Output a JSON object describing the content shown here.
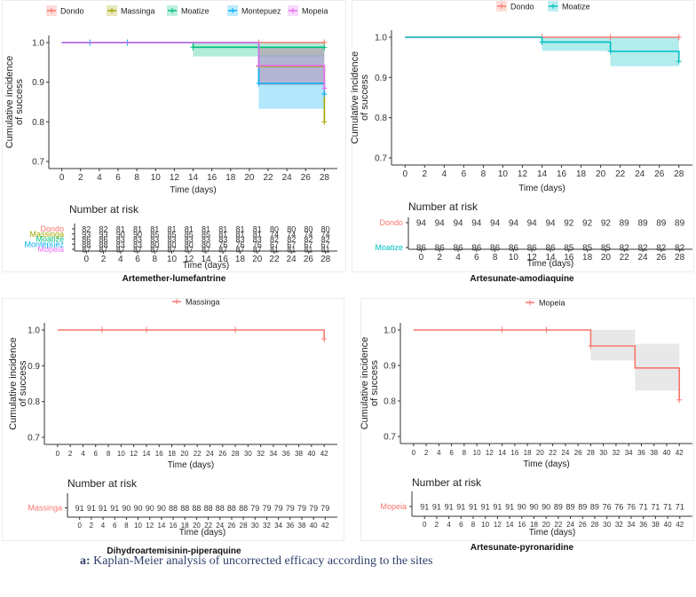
{
  "figure_caption": {
    "label": "a:",
    "text": "Kaplan-Meier analysis of uncorrected efficacy according to the sites"
  },
  "chart_data": [
    {
      "type": "line",
      "subtype": "kaplan-meier step",
      "title": "Artemether-lumefantrine",
      "xlabel": "Time (days)",
      "ylabel": "Cumulative incidence of success",
      "xlim": [
        0,
        28
      ],
      "ylim": [
        0.7,
        1.0
      ],
      "x_ticks": [
        0,
        2,
        4,
        6,
        8,
        10,
        12,
        14,
        16,
        18,
        20,
        22,
        24,
        26,
        28
      ],
      "y_ticks": [
        0.7,
        0.8,
        0.9,
        1.0
      ],
      "y_tick_labels": [
        "0.7",
        "0.8",
        "0.9",
        "1.0"
      ],
      "grid": false,
      "legend_position": "top",
      "series": [
        {
          "name": "Dondo",
          "color": "#f8766d",
          "steps": [
            [
              0,
              1.0
            ],
            [
              28,
              1.0
            ]
          ],
          "ci": [],
          "censor_x": [
            21,
            28
          ]
        },
        {
          "name": "Massinga",
          "color": "#a3a500",
          "steps": [
            [
              0,
              1.0
            ],
            [
              21,
              0.94
            ],
            [
              28,
              0.8
            ]
          ],
          "ci": [
            [
              21,
              28,
              0.893,
              0.99
            ]
          ],
          "censor_x": [
            21,
            28
          ]
        },
        {
          "name": "Moatize",
          "color": "#00bf7d",
          "steps": [
            [
              0,
              1.0
            ],
            [
              14,
              0.988
            ],
            [
              28,
              0.988
            ]
          ],
          "ci": [
            [
              14,
              28,
              0.965,
              1.0
            ]
          ],
          "censor_x": [
            14,
            28
          ]
        },
        {
          "name": "Montepuez",
          "color": "#00b0f6",
          "steps": [
            [
              0,
              1.0
            ],
            [
              21,
              0.897
            ],
            [
              28,
              0.87
            ]
          ],
          "ci": [
            [
              21,
              28,
              0.833,
              0.968
            ]
          ],
          "censor_x": [
            3,
            7,
            21,
            28
          ]
        },
        {
          "name": "Mopeia",
          "color": "#e76bf3",
          "steps": [
            [
              0,
              1.0
            ],
            [
              21,
              0.942
            ],
            [
              28,
              0.885
            ]
          ],
          "ci": [
            [
              21,
              28,
              0.893,
              0.99
            ]
          ],
          "censor_x": [
            21,
            28
          ]
        }
      ],
      "risk_table": {
        "title": "Number at risk",
        "times": [
          0,
          2,
          4,
          6,
          8,
          10,
          12,
          14,
          16,
          18,
          20,
          22,
          24,
          26,
          28
        ],
        "rows": [
          {
            "name": "Dondo",
            "color": "#f8766d",
            "values": [
              82,
              82,
              81,
              81,
              81,
              81,
              81,
              81,
              81,
              81,
              81,
              80,
              80,
              80,
              80
            ]
          },
          {
            "name": "Massinga",
            "color": "#a3a500",
            "values": [
              93,
              93,
              90,
              90,
              85,
              85,
              85,
              85,
              81,
              81,
              81,
              74,
              74,
              74,
              74
            ]
          },
          {
            "name": "Moatize",
            "color": "#00bf7d",
            "values": [
              86,
              86,
              83,
              83,
              83,
              83,
              83,
              83,
              83,
              83,
              83,
              82,
              82,
              82,
              82
            ]
          },
          {
            "name": "Montepuez",
            "color": "#00b0f6",
            "values": [
              88,
              88,
              83,
              83,
              80,
              80,
              80,
              80,
              76,
              76,
              76,
              67,
              67,
              67,
              67
            ]
          },
          {
            "name": "Mopeia",
            "color": "#e76bf3",
            "values": [
              87,
              87,
              87,
              87,
              87,
              87,
              87,
              87,
              87,
              87,
              87,
              81,
              81,
              81,
              81
            ]
          }
        ],
        "xlabel": "Time (days)"
      }
    },
    {
      "type": "line",
      "subtype": "kaplan-meier step",
      "title": "Artesunate-amodiaquine",
      "xlabel": "Time (days)",
      "ylabel": "Cumulative incidence of success",
      "xlim": [
        0,
        28
      ],
      "ylim": [
        0.7,
        1.0
      ],
      "x_ticks": [
        0,
        2,
        4,
        6,
        8,
        10,
        12,
        14,
        16,
        18,
        20,
        22,
        24,
        26,
        28
      ],
      "y_ticks": [
        0.7,
        0.8,
        0.9,
        1.0
      ],
      "y_tick_labels": [
        "0.7",
        "0.8",
        "0.9",
        "1.0"
      ],
      "grid": false,
      "legend_position": "top",
      "series": [
        {
          "name": "Dondo",
          "color": "#f8766d",
          "steps": [
            [
              0,
              1.0
            ],
            [
              28,
              1.0
            ]
          ],
          "ci": [],
          "censor_x": [
            14,
            21,
            28
          ]
        },
        {
          "name": "Moatize",
          "color": "#00bfc4",
          "steps": [
            [
              0,
              1.0
            ],
            [
              14,
              0.988
            ],
            [
              21,
              0.965
            ],
            [
              28,
              0.94
            ]
          ],
          "ci": [
            [
              14,
              21,
              0.966,
              1.0
            ],
            [
              21,
              28,
              0.928,
              1.0
            ]
          ],
          "censor_x": [
            14,
            21,
            28
          ]
        }
      ],
      "risk_table": {
        "title": "Number at risk",
        "times": [
          0,
          2,
          4,
          6,
          8,
          10,
          12,
          14,
          16,
          18,
          20,
          22,
          24,
          26,
          28
        ],
        "rows": [
          {
            "name": "Dondo",
            "color": "#f8766d",
            "values": [
              94,
              94,
              94,
              94,
              94,
              94,
              94,
              94,
              92,
              92,
              92,
              89,
              89,
              89,
              89
            ]
          },
          {
            "name": "Moatize",
            "color": "#00bfc4",
            "values": [
              86,
              86,
              86,
              86,
              86,
              86,
              86,
              86,
              85,
              85,
              85,
              82,
              82,
              82,
              82
            ]
          }
        ],
        "xlabel": "Time (days)"
      }
    },
    {
      "type": "line",
      "subtype": "kaplan-meier step",
      "title": "Dihydroartemisinin-piperaquine",
      "xlabel": "Time (days)",
      "ylabel": "Cumulative incidence of success",
      "xlim": [
        0,
        42
      ],
      "ylim": [
        0.7,
        1.0
      ],
      "x_ticks": [
        0,
        2,
        4,
        6,
        8,
        10,
        12,
        14,
        16,
        18,
        20,
        22,
        24,
        26,
        28,
        30,
        32,
        34,
        36,
        38,
        40,
        42
      ],
      "y_ticks": [
        0.7,
        0.8,
        0.9,
        1.0
      ],
      "y_tick_labels": [
        "0.7",
        "0.8",
        "0.9",
        "1.0"
      ],
      "grid": false,
      "legend_position": "top",
      "series": [
        {
          "name": "Massinga",
          "color": "#f8766d",
          "steps": [
            [
              0,
              1.0
            ],
            [
              42,
              0.975
            ]
          ],
          "ci": [],
          "censor_x": [
            7,
            14,
            28,
            42
          ]
        }
      ],
      "risk_table": {
        "title": "Number at risk",
        "times": [
          0,
          2,
          4,
          6,
          8,
          10,
          12,
          14,
          16,
          18,
          20,
          22,
          24,
          26,
          28,
          30,
          32,
          34,
          36,
          38,
          40,
          42
        ],
        "rows": [
          {
            "name": "Massinga",
            "color": "#f8766d",
            "values": [
              91,
              91,
              91,
              91,
              90,
              90,
              90,
              90,
              88,
              88,
              88,
              88,
              88,
              88,
              88,
              79,
              79,
              79,
              79,
              79,
              79,
              79
            ]
          }
        ],
        "xlabel": "Time (days)"
      }
    },
    {
      "type": "line",
      "subtype": "kaplan-meier step",
      "title": "Artesunate-pyronaridine",
      "xlabel": "Time (days)",
      "ylabel": "Cumulative incidence of success",
      "xlim": [
        0,
        42
      ],
      "ylim": [
        0.7,
        1.0
      ],
      "x_ticks": [
        0,
        2,
        4,
        6,
        8,
        10,
        12,
        14,
        16,
        18,
        20,
        22,
        24,
        26,
        28,
        30,
        32,
        34,
        36,
        38,
        40,
        42
      ],
      "y_ticks": [
        0.7,
        0.8,
        0.9,
        1.0
      ],
      "y_tick_labels": [
        "0.7",
        "0.8",
        "0.9",
        "1.0"
      ],
      "grid": false,
      "legend_position": "top",
      "ci_color": "#e8e8e8",
      "series": [
        {
          "name": "Mopeia",
          "color": "#f8766d",
          "steps": [
            [
              0,
              1.0
            ],
            [
              28,
              0.955
            ],
            [
              35,
              0.893
            ],
            [
              42,
              0.803
            ]
          ],
          "ci": [
            [
              28,
              35,
              0.914,
              1.0
            ],
            [
              35,
              42,
              0.829,
              0.961
            ]
          ],
          "censor_x": [
            14,
            21,
            28,
            42
          ]
        }
      ],
      "risk_table": {
        "title": "Number at risk",
        "times": [
          0,
          2,
          4,
          6,
          8,
          10,
          12,
          14,
          16,
          18,
          20,
          22,
          24,
          26,
          28,
          30,
          32,
          34,
          36,
          38,
          40,
          42
        ],
        "rows": [
          {
            "name": "Mopeia",
            "color": "#f8766d",
            "values": [
              91,
              91,
              91,
              91,
              91,
              91,
              91,
              91,
              90,
              90,
              90,
              89,
              89,
              89,
              89,
              76,
              76,
              76,
              71,
              71,
              71,
              71
            ]
          }
        ],
        "xlabel": "Time (days)"
      }
    }
  ]
}
